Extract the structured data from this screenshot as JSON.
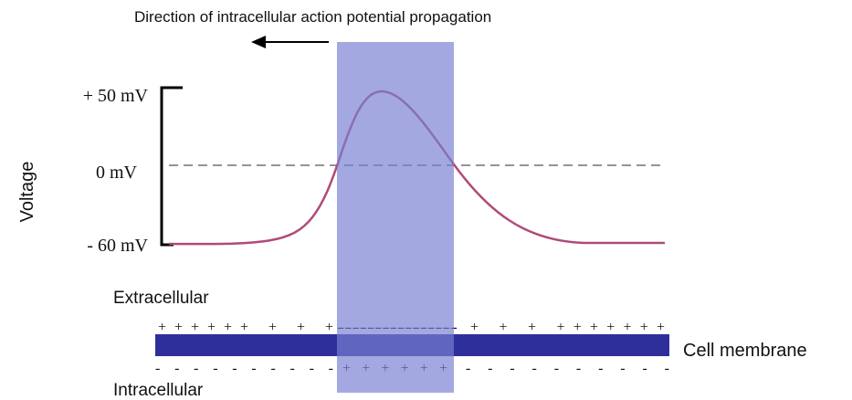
{
  "header": {
    "title": "Direction of intracellular action potential propagation"
  },
  "axis": {
    "label": "Voltage",
    "levels": [
      "+ 50 mV",
      "0 mV",
      "- 60 mV"
    ]
  },
  "regions": {
    "outside": "Extracellular",
    "membrane": "Cell membrane",
    "inside": "Intracellular"
  },
  "charges": {
    "outside": [
      "++++++ + + +",
      "----------------",
      "+  + + +++++++"
    ],
    "inside": [
      "- - - - - - - -  -  -",
      "++++++",
      "- - - - - - - - - -"
    ]
  }
}
